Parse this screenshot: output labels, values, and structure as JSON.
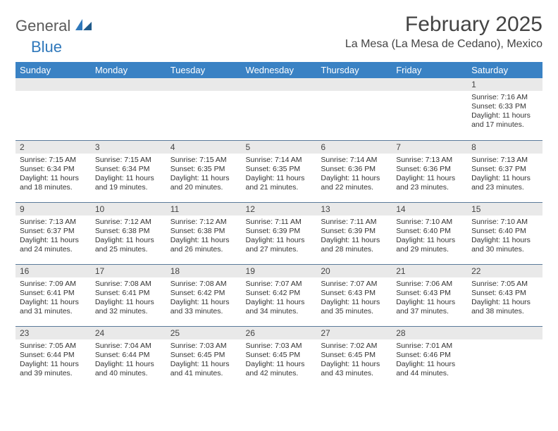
{
  "brand": {
    "general": "General",
    "blue": "Blue"
  },
  "title": "February 2025",
  "location": "La Mesa (La Mesa de Cedano), Mexico",
  "colors": {
    "header_bg": "#3a82c4",
    "header_text": "#ffffff",
    "band_bg": "#e9e9e9",
    "rule": "#5a7a9a",
    "logo_blue": "#2f78bb",
    "logo_gray": "#5a5a5a"
  },
  "weekdays": [
    "Sunday",
    "Monday",
    "Tuesday",
    "Wednesday",
    "Thursday",
    "Friday",
    "Saturday"
  ],
  "weeks": [
    [
      {
        "day": "",
        "lines": []
      },
      {
        "day": "",
        "lines": []
      },
      {
        "day": "",
        "lines": []
      },
      {
        "day": "",
        "lines": []
      },
      {
        "day": "",
        "lines": []
      },
      {
        "day": "",
        "lines": []
      },
      {
        "day": "1",
        "lines": [
          "Sunrise: 7:16 AM",
          "Sunset: 6:33 PM",
          "Daylight: 11 hours and 17 minutes."
        ]
      }
    ],
    [
      {
        "day": "2",
        "lines": [
          "Sunrise: 7:15 AM",
          "Sunset: 6:34 PM",
          "Daylight: 11 hours and 18 minutes."
        ]
      },
      {
        "day": "3",
        "lines": [
          "Sunrise: 7:15 AM",
          "Sunset: 6:34 PM",
          "Daylight: 11 hours and 19 minutes."
        ]
      },
      {
        "day": "4",
        "lines": [
          "Sunrise: 7:15 AM",
          "Sunset: 6:35 PM",
          "Daylight: 11 hours and 20 minutes."
        ]
      },
      {
        "day": "5",
        "lines": [
          "Sunrise: 7:14 AM",
          "Sunset: 6:35 PM",
          "Daylight: 11 hours and 21 minutes."
        ]
      },
      {
        "day": "6",
        "lines": [
          "Sunrise: 7:14 AM",
          "Sunset: 6:36 PM",
          "Daylight: 11 hours and 22 minutes."
        ]
      },
      {
        "day": "7",
        "lines": [
          "Sunrise: 7:13 AM",
          "Sunset: 6:36 PM",
          "Daylight: 11 hours and 23 minutes."
        ]
      },
      {
        "day": "8",
        "lines": [
          "Sunrise: 7:13 AM",
          "Sunset: 6:37 PM",
          "Daylight: 11 hours and 23 minutes."
        ]
      }
    ],
    [
      {
        "day": "9",
        "lines": [
          "Sunrise: 7:13 AM",
          "Sunset: 6:37 PM",
          "Daylight: 11 hours and 24 minutes."
        ]
      },
      {
        "day": "10",
        "lines": [
          "Sunrise: 7:12 AM",
          "Sunset: 6:38 PM",
          "Daylight: 11 hours and 25 minutes."
        ]
      },
      {
        "day": "11",
        "lines": [
          "Sunrise: 7:12 AM",
          "Sunset: 6:38 PM",
          "Daylight: 11 hours and 26 minutes."
        ]
      },
      {
        "day": "12",
        "lines": [
          "Sunrise: 7:11 AM",
          "Sunset: 6:39 PM",
          "Daylight: 11 hours and 27 minutes."
        ]
      },
      {
        "day": "13",
        "lines": [
          "Sunrise: 7:11 AM",
          "Sunset: 6:39 PM",
          "Daylight: 11 hours and 28 minutes."
        ]
      },
      {
        "day": "14",
        "lines": [
          "Sunrise: 7:10 AM",
          "Sunset: 6:40 PM",
          "Daylight: 11 hours and 29 minutes."
        ]
      },
      {
        "day": "15",
        "lines": [
          "Sunrise: 7:10 AM",
          "Sunset: 6:40 PM",
          "Daylight: 11 hours and 30 minutes."
        ]
      }
    ],
    [
      {
        "day": "16",
        "lines": [
          "Sunrise: 7:09 AM",
          "Sunset: 6:41 PM",
          "Daylight: 11 hours and 31 minutes."
        ]
      },
      {
        "day": "17",
        "lines": [
          "Sunrise: 7:08 AM",
          "Sunset: 6:41 PM",
          "Daylight: 11 hours and 32 minutes."
        ]
      },
      {
        "day": "18",
        "lines": [
          "Sunrise: 7:08 AM",
          "Sunset: 6:42 PM",
          "Daylight: 11 hours and 33 minutes."
        ]
      },
      {
        "day": "19",
        "lines": [
          "Sunrise: 7:07 AM",
          "Sunset: 6:42 PM",
          "Daylight: 11 hours and 34 minutes."
        ]
      },
      {
        "day": "20",
        "lines": [
          "Sunrise: 7:07 AM",
          "Sunset: 6:43 PM",
          "Daylight: 11 hours and 35 minutes."
        ]
      },
      {
        "day": "21",
        "lines": [
          "Sunrise: 7:06 AM",
          "Sunset: 6:43 PM",
          "Daylight: 11 hours and 37 minutes."
        ]
      },
      {
        "day": "22",
        "lines": [
          "Sunrise: 7:05 AM",
          "Sunset: 6:43 PM",
          "Daylight: 11 hours and 38 minutes."
        ]
      }
    ],
    [
      {
        "day": "23",
        "lines": [
          "Sunrise: 7:05 AM",
          "Sunset: 6:44 PM",
          "Daylight: 11 hours and 39 minutes."
        ]
      },
      {
        "day": "24",
        "lines": [
          "Sunrise: 7:04 AM",
          "Sunset: 6:44 PM",
          "Daylight: 11 hours and 40 minutes."
        ]
      },
      {
        "day": "25",
        "lines": [
          "Sunrise: 7:03 AM",
          "Sunset: 6:45 PM",
          "Daylight: 11 hours and 41 minutes."
        ]
      },
      {
        "day": "26",
        "lines": [
          "Sunrise: 7:03 AM",
          "Sunset: 6:45 PM",
          "Daylight: 11 hours and 42 minutes."
        ]
      },
      {
        "day": "27",
        "lines": [
          "Sunrise: 7:02 AM",
          "Sunset: 6:45 PM",
          "Daylight: 11 hours and 43 minutes."
        ]
      },
      {
        "day": "28",
        "lines": [
          "Sunrise: 7:01 AM",
          "Sunset: 6:46 PM",
          "Daylight: 11 hours and 44 minutes."
        ]
      },
      {
        "day": "",
        "lines": []
      }
    ]
  ]
}
